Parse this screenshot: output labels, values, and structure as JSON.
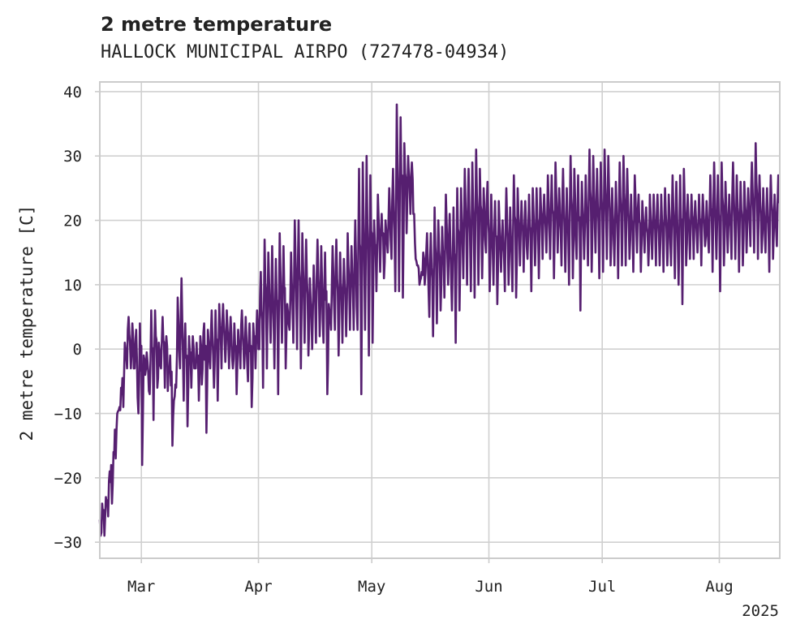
{
  "chart_data": {
    "type": "line",
    "title": "2 metre temperature",
    "subtitle": "HALLOCK MUNICIPAL AIRPO (727478-04934)",
    "ylabel": "2 metre temperature [C]",
    "xlabel": "",
    "year_label": "2025",
    "ylim": [
      -32.5,
      41.5
    ],
    "xlim": [
      "2025-02-18",
      "2025-08-17"
    ],
    "y_ticks": [
      -30,
      -20,
      -10,
      0,
      10,
      20,
      30,
      40
    ],
    "x_ticks": [
      {
        "date": "2025-03-01",
        "label": "Mar"
      },
      {
        "date": "2025-04-01",
        "label": "Apr"
      },
      {
        "date": "2025-05-01",
        "label": "May"
      },
      {
        "date": "2025-06-01",
        "label": "Jun"
      },
      {
        "date": "2025-07-01",
        "label": "Jul"
      },
      {
        "date": "2025-08-01",
        "label": "Aug"
      }
    ],
    "grid": true,
    "line_color": "#561f70",
    "series": [
      {
        "x": [
          "2025-02-18",
          "2025-02-19",
          "2025-02-20",
          "2025-02-21",
          "2025-02-22",
          "2025-02-23",
          "2025-02-24",
          "2025-02-25",
          "2025-02-26",
          "2025-02-27",
          "2025-02-28",
          "2025-03-01",
          "2025-03-02",
          "2025-03-03",
          "2025-03-04",
          "2025-03-05",
          "2025-03-06",
          "2025-03-07",
          "2025-03-08",
          "2025-03-09",
          "2025-03-10",
          "2025-03-11",
          "2025-03-12",
          "2025-03-13",
          "2025-03-14",
          "2025-03-15",
          "2025-03-16",
          "2025-03-17",
          "2025-03-18",
          "2025-03-19",
          "2025-03-20",
          "2025-03-21",
          "2025-03-22",
          "2025-03-23",
          "2025-03-24",
          "2025-03-25",
          "2025-03-26",
          "2025-03-27",
          "2025-03-28",
          "2025-03-29",
          "2025-03-30",
          "2025-03-31",
          "2025-04-01",
          "2025-04-02",
          "2025-04-03",
          "2025-04-04",
          "2025-04-05",
          "2025-04-06",
          "2025-04-07",
          "2025-04-08",
          "2025-04-09",
          "2025-04-10",
          "2025-04-11",
          "2025-04-12",
          "2025-04-13",
          "2025-04-14",
          "2025-04-15",
          "2025-04-16",
          "2025-04-17",
          "2025-04-18",
          "2025-04-19",
          "2025-04-20",
          "2025-04-21",
          "2025-04-22",
          "2025-04-23",
          "2025-04-24",
          "2025-04-25",
          "2025-04-26",
          "2025-04-27",
          "2025-04-28",
          "2025-04-29",
          "2025-04-30",
          "2025-05-01",
          "2025-05-02",
          "2025-05-03",
          "2025-05-04",
          "2025-05-05",
          "2025-05-06",
          "2025-05-07",
          "2025-05-08",
          "2025-05-09",
          "2025-05-10",
          "2025-05-11",
          "2025-05-12",
          "2025-05-13",
          "2025-05-14",
          "2025-05-15",
          "2025-05-16",
          "2025-05-17",
          "2025-05-18",
          "2025-05-19",
          "2025-05-20",
          "2025-05-21",
          "2025-05-22",
          "2025-05-23",
          "2025-05-24",
          "2025-05-25",
          "2025-05-26",
          "2025-05-27",
          "2025-05-28",
          "2025-05-29",
          "2025-05-30",
          "2025-05-31",
          "2025-06-01",
          "2025-06-02",
          "2025-06-03",
          "2025-06-04",
          "2025-06-05",
          "2025-06-06",
          "2025-06-07",
          "2025-06-08",
          "2025-06-09",
          "2025-06-10",
          "2025-06-11",
          "2025-06-12",
          "2025-06-13",
          "2025-06-14",
          "2025-06-15",
          "2025-06-16",
          "2025-06-17",
          "2025-06-18",
          "2025-06-19",
          "2025-06-20",
          "2025-06-21",
          "2025-06-22",
          "2025-06-23",
          "2025-06-24",
          "2025-06-25",
          "2025-06-26",
          "2025-06-27",
          "2025-06-28",
          "2025-06-29",
          "2025-06-30",
          "2025-07-01",
          "2025-07-02",
          "2025-07-03",
          "2025-07-04",
          "2025-07-05",
          "2025-07-06",
          "2025-07-07",
          "2025-07-08",
          "2025-07-09",
          "2025-07-10",
          "2025-07-11",
          "2025-07-12",
          "2025-07-13",
          "2025-07-14",
          "2025-07-15",
          "2025-07-16",
          "2025-07-17",
          "2025-07-18",
          "2025-07-19",
          "2025-07-20",
          "2025-07-21",
          "2025-07-22",
          "2025-07-23",
          "2025-07-24",
          "2025-07-25",
          "2025-07-26",
          "2025-07-27",
          "2025-07-28",
          "2025-07-29",
          "2025-07-30",
          "2025-07-31",
          "2025-08-01",
          "2025-08-02",
          "2025-08-03",
          "2025-08-04",
          "2025-08-05",
          "2025-08-06",
          "2025-08-07",
          "2025-08-08",
          "2025-08-09",
          "2025-08-10",
          "2025-08-11",
          "2025-08-12",
          "2025-08-13",
          "2025-08-14",
          "2025-08-15",
          "2025-08-16"
        ],
        "min": [
          -29,
          -29,
          -26,
          -24,
          -17,
          -9,
          -9,
          -3,
          -3,
          -3,
          -10,
          -18,
          -3,
          -7,
          -11,
          -6,
          -3,
          -6,
          -3,
          -15,
          -6,
          -3,
          -8,
          -12,
          -6,
          -3,
          -8,
          -3,
          -13,
          -3,
          -6,
          -8,
          -3,
          -2,
          -3,
          -3,
          -7,
          -3,
          -3,
          -5,
          -9,
          -3,
          0,
          -6,
          -3,
          1,
          -3,
          -7,
          1,
          -3,
          3,
          1,
          0,
          -3,
          1,
          -1,
          0,
          1,
          2,
          1,
          -7,
          3,
          3,
          -1,
          1,
          2,
          3,
          3,
          3,
          -7,
          3,
          -1,
          1,
          9,
          12,
          11,
          15,
          14,
          9,
          9,
          8,
          18,
          21,
          21,
          13,
          12,
          12,
          5,
          2,
          4,
          6,
          8,
          10,
          6,
          1,
          6,
          11,
          10,
          9,
          8,
          10,
          11,
          15,
          9,
          10,
          7,
          12,
          9,
          10,
          9,
          8,
          13,
          12,
          14,
          9,
          13,
          11,
          14,
          15,
          14,
          11,
          15,
          13,
          12,
          10,
          11,
          14,
          6,
          14,
          13,
          12,
          15,
          11,
          12,
          14,
          13,
          13,
          11,
          13,
          13,
          14,
          12,
          15,
          12,
          15,
          13,
          14,
          13,
          13,
          12,
          13,
          13,
          11,
          10,
          7,
          13,
          14,
          14,
          15,
          13,
          16,
          15,
          12,
          14,
          9,
          13,
          15,
          14,
          14,
          12,
          13,
          15,
          16,
          15,
          14,
          15,
          15,
          12,
          14,
          16,
          14,
          14,
          15,
          15,
          14,
          8,
          18
        ],
        "max": [
          -24,
          -23,
          -19,
          -16,
          -10,
          -6,
          1,
          5,
          4,
          3,
          4,
          -1,
          -2,
          6,
          6,
          1,
          5,
          2,
          -1,
          -8,
          8,
          11,
          4,
          2,
          2,
          1,
          2,
          4,
          3,
          6,
          6,
          7,
          7,
          6,
          5,
          4,
          3,
          6,
          5,
          4,
          4,
          6,
          12,
          17,
          15,
          16,
          14,
          18,
          16,
          7,
          15,
          20,
          20,
          18,
          17,
          11,
          13,
          17,
          16,
          15,
          7,
          16,
          17,
          15,
          14,
          18,
          16,
          20,
          28,
          29,
          30,
          27,
          20,
          24,
          21,
          20,
          25,
          28,
          38,
          36,
          32,
          30,
          29,
          14,
          10,
          15,
          18,
          18,
          22,
          20,
          19,
          24,
          21,
          22,
          25,
          25,
          28,
          28,
          29,
          31,
          28,
          25,
          26,
          24,
          23,
          23,
          20,
          25,
          22,
          27,
          25,
          23,
          23,
          24,
          25,
          25,
          25,
          24,
          27,
          27,
          29,
          25,
          28,
          25,
          30,
          28,
          27,
          26,
          27,
          31,
          30,
          28,
          29,
          31,
          30,
          25,
          26,
          29,
          30,
          28,
          24,
          27,
          24,
          23,
          22,
          24,
          24,
          24,
          24,
          25,
          24,
          27,
          26,
          27,
          28,
          24,
          24,
          23,
          24,
          24,
          23,
          27,
          29,
          27,
          29,
          26,
          24,
          29,
          27,
          26,
          26,
          25,
          29,
          32,
          27,
          25,
          25,
          27,
          24,
          27,
          29,
          28
        ]
      }
    ]
  }
}
